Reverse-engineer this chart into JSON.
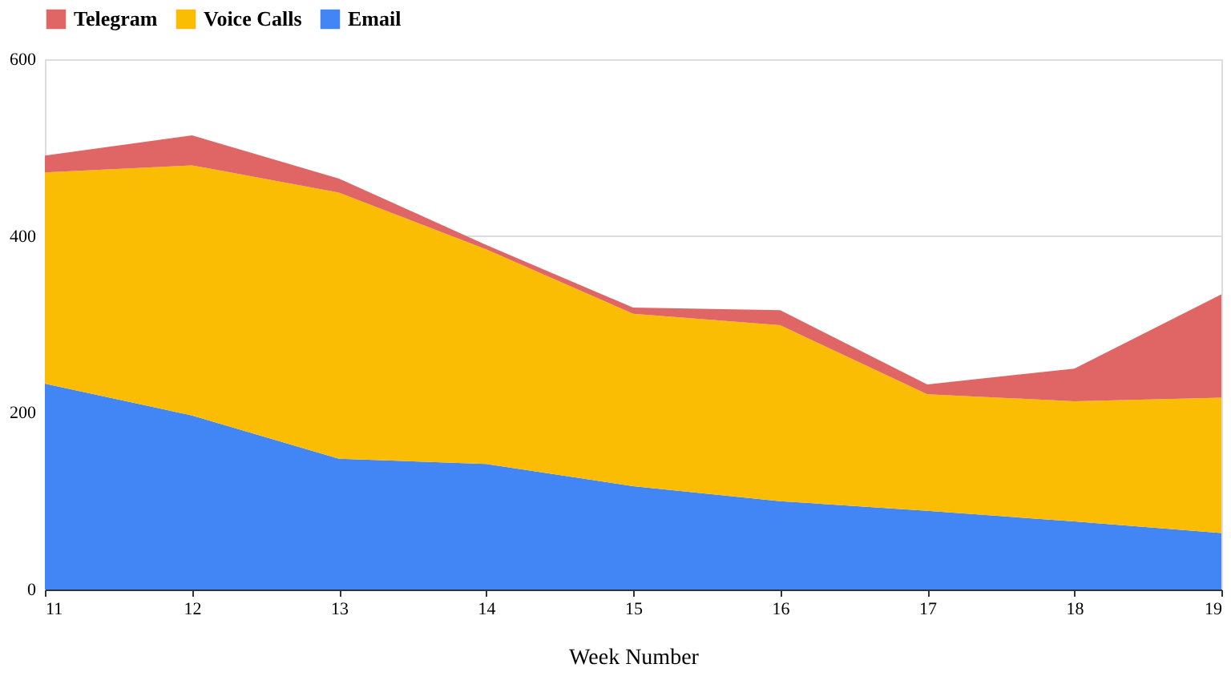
{
  "chart_data": {
    "type": "area",
    "stacked": true,
    "xlabel": "Week Number",
    "x": [
      11,
      12,
      13,
      14,
      15,
      16,
      17,
      18,
      19
    ],
    "series": [
      {
        "name": "Email",
        "color": "#4285f4",
        "values": [
          233,
          197,
          148,
          142,
          117,
          100,
          89,
          77,
          64
        ]
      },
      {
        "name": "Voice Calls",
        "color": "#fbbc04",
        "values": [
          239,
          283,
          301,
          243,
          195,
          199,
          132,
          136,
          153
        ]
      },
      {
        "name": "Telegram",
        "color": "#e06666",
        "values": [
          19,
          34,
          16,
          5,
          7,
          17,
          11,
          37,
          117
        ]
      }
    ],
    "xlim": [
      11,
      19
    ],
    "xticks": [
      11,
      12,
      13,
      14,
      15,
      16,
      17,
      18,
      19
    ],
    "ylim": [
      0,
      600
    ],
    "yticks": [
      0,
      200,
      400,
      600
    ],
    "grid": "y",
    "legend": "top"
  }
}
